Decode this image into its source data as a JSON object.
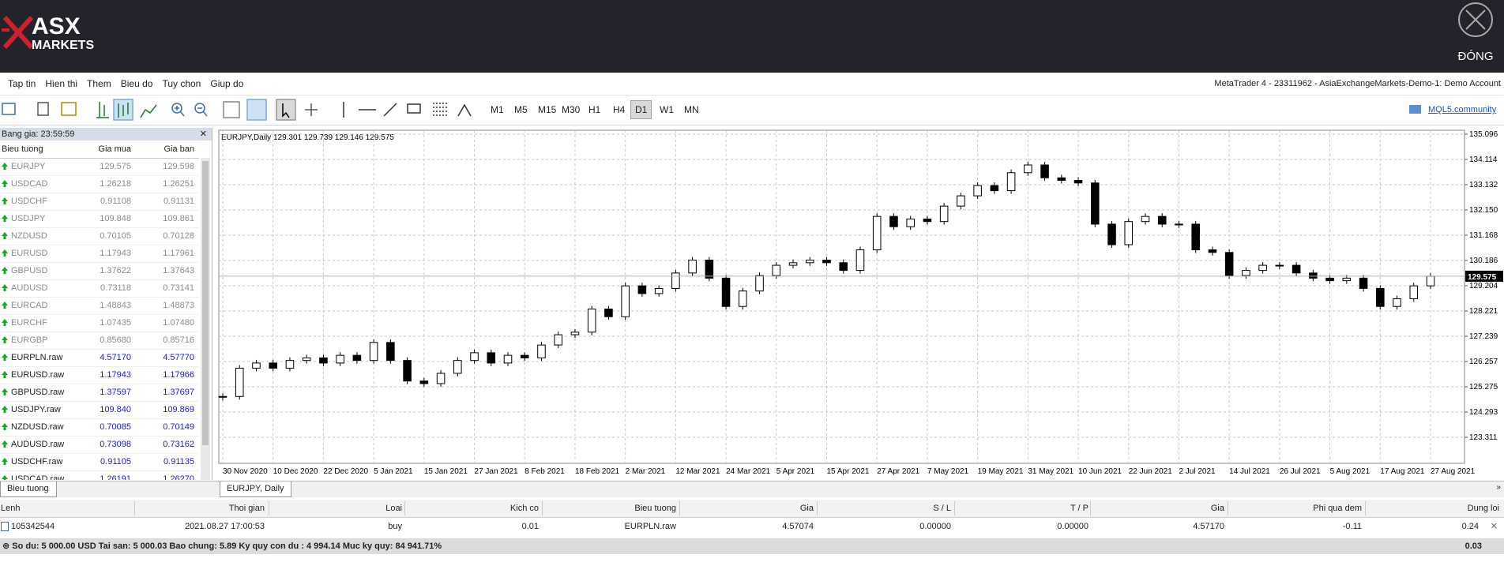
{
  "header": {
    "logo_top": "ASX",
    "logo_bottom": "MARKETS",
    "close_label": "ĐÓNG"
  },
  "menu": {
    "items": [
      "Tap tin",
      "Hien thi",
      "Them",
      "Bieu do",
      "Tuy chon",
      "Giup do"
    ],
    "account": "MetaTrader 4 - 23311962 - AsiaExchangeMarkets-Demo-1: Demo Account"
  },
  "toolbar": {
    "timeframes": [
      "M1",
      "M5",
      "M15",
      "M30",
      "H1",
      "H4",
      "D1",
      "W1",
      "MN"
    ],
    "active": "D1",
    "community": "MQL5.community"
  },
  "market_watch": {
    "title": "Bang gia: 23:59:59",
    "columns": [
      "Bieu tuong",
      "Gia mua",
      "Gia ban"
    ],
    "rows": [
      {
        "symbol": "EURJPY",
        "bid": "129.575",
        "ask": "129.598",
        "color": "#8c8c8c",
        "symbol_color": "#8c8c8c"
      },
      {
        "symbol": "USDCAD",
        "bid": "1.26218",
        "ask": "1.26251",
        "color": "#8c8c8c",
        "symbol_color": "#8c8c8c"
      },
      {
        "symbol": "USDCHF",
        "bid": "0.91108",
        "ask": "0.91131",
        "color": "#8c8c8c",
        "symbol_color": "#8c8c8c"
      },
      {
        "symbol": "USDJPY",
        "bid": "109.848",
        "ask": "109.861",
        "color": "#8c8c8c",
        "symbol_color": "#8c8c8c"
      },
      {
        "symbol": "NZDUSD",
        "bid": "0.70105",
        "ask": "0.70128",
        "color": "#8c8c8c",
        "symbol_color": "#8c8c8c"
      },
      {
        "symbol": "EURUSD",
        "bid": "1.17943",
        "ask": "1.17961",
        "color": "#8c8c8c",
        "symbol_color": "#8c8c8c"
      },
      {
        "symbol": "GBPUSD",
        "bid": "1.37622",
        "ask": "1.37643",
        "color": "#8c8c8c",
        "symbol_color": "#8c8c8c"
      },
      {
        "symbol": "AUDUSD",
        "bid": "0.73118",
        "ask": "0.73141",
        "color": "#8c8c8c",
        "symbol_color": "#8c8c8c"
      },
      {
        "symbol": "EURCAD",
        "bid": "1.48843",
        "ask": "1.48873",
        "color": "#8c8c8c",
        "symbol_color": "#8c8c8c"
      },
      {
        "symbol": "EURCHF",
        "bid": "1.07435",
        "ask": "1.07480",
        "color": "#8c8c8c",
        "symbol_color": "#8c8c8c"
      },
      {
        "symbol": "EURGBP",
        "bid": "0.85680",
        "ask": "0.85716",
        "color": "#8c8c8c",
        "symbol_color": "#8c8c8c"
      },
      {
        "symbol": "EURPLN.raw",
        "bid": "4.57170",
        "ask": "4.57770",
        "color": "#1a1ad6",
        "symbol_color": "#222222"
      },
      {
        "symbol": "EURUSD.raw",
        "bid": "1.17943",
        "ask": "1.17966",
        "color": "#1a1ad6",
        "symbol_color": "#222222"
      },
      {
        "symbol": "GBPUSD.raw",
        "bid": "1.37597",
        "ask": "1.37697",
        "color": "#1a1ad6",
        "symbol_color": "#222222"
      },
      {
        "symbol": "USDJPY.raw",
        "bid": "109.840",
        "ask": "109.869",
        "color": "#1a1ad6",
        "symbol_color": "#222222"
      },
      {
        "symbol": "NZDUSD.raw",
        "bid": "0.70085",
        "ask": "0.70149",
        "color": "#1a1ad6",
        "symbol_color": "#222222"
      },
      {
        "symbol": "AUDUSD.raw",
        "bid": "0.73098",
        "ask": "0.73162",
        "color": "#1a1ad6",
        "symbol_color": "#222222"
      },
      {
        "symbol": "USDCHF.raw",
        "bid": "0.91105",
        "ask": "0.91135",
        "color": "#1a1ad6",
        "symbol_color": "#222222"
      },
      {
        "symbol": "USDCAD.raw",
        "bid": "1.26191",
        "ask": "1.26270",
        "color": "#1a1ad6",
        "symbol_color": "#222222"
      }
    ]
  },
  "chart_data": {
    "type": "candlestick",
    "title": "EURJPY,Daily  129.301 129.739 129.146 129.575",
    "categories": [
      "30 Nov 2020",
      null,
      null,
      "10 Dec 2020",
      null,
      null,
      "22 Dec 2020",
      null,
      null,
      "5 Jan 2021",
      null,
      null,
      "15 Jan 2021",
      null,
      null,
      "27 Jan 2021",
      null,
      null,
      "8 Feb 2021",
      null,
      null,
      "18 Feb 2021",
      null,
      null,
      "2 Mar 2021",
      null,
      null,
      "12 Mar 2021",
      null,
      null,
      "24 Mar 2021",
      null,
      null,
      "5 Apr 2021",
      null,
      null,
      "15 Apr 2021",
      null,
      null,
      "27 Apr 2021",
      null,
      null,
      "7 May 2021",
      null,
      null,
      "19 May 2021",
      null,
      null,
      "31 May 2021",
      null,
      null,
      "10 Jun 2021",
      null,
      null,
      "22 Jun 2021",
      null,
      null,
      "2 Jul 2021",
      null,
      null,
      "14 Jul 2021",
      null,
      null,
      "26 Jul 2021",
      null,
      null,
      "5 Aug 2021",
      null,
      null,
      "17 Aug 2021",
      null,
      null,
      "27 Aug 2021"
    ],
    "close": [
      124.9,
      126.0,
      126.2,
      126.0,
      126.3,
      126.4,
      126.2,
      126.5,
      126.3,
      127.0,
      126.3,
      125.5,
      125.4,
      125.8,
      126.3,
      126.6,
      126.2,
      126.5,
      126.4,
      126.9,
      127.3,
      127.4,
      128.3,
      128.0,
      129.2,
      128.9,
      129.1,
      129.7,
      130.2,
      129.5,
      128.4,
      129.0,
      129.6,
      130.0,
      130.1,
      130.2,
      130.1,
      129.8,
      130.6,
      131.9,
      131.5,
      131.8,
      131.7,
      132.3,
      132.7,
      133.1,
      132.9,
      133.6,
      133.9,
      133.4,
      133.3,
      133.2,
      131.6,
      130.8,
      131.7,
      131.9,
      131.6,
      131.6,
      130.6,
      130.5,
      129.6,
      129.8,
      130.0,
      130.0,
      129.7,
      129.5,
      129.4,
      129.5,
      129.1,
      128.4,
      128.7,
      129.2,
      129.575
    ],
    "ylim": [
      122.3,
      135.25
    ],
    "yticks": [
      135.096,
      134.114,
      133.132,
      {
        "value": 132.15,
        "label": "132.150"
      },
      131.168,
      130.186,
      129.204,
      128.221,
      127.239,
      126.257,
      125.275,
      124.293,
      123.311
    ],
    "grid": true,
    "color": "#000000"
  },
  "tabs": {
    "left": "Bieu tuong",
    "chart": "EURJPY, Daily"
  },
  "orders": {
    "columns": [
      "Lenh",
      "Thoi gian",
      "Loai",
      "Kich co",
      "Bieu tuong",
      "Gia",
      "S / L",
      "T / P",
      "Gia",
      "Phi qua dem",
      "Dung loi"
    ],
    "rows": [
      [
        "105342544",
        "2021.08.27 17:00:53",
        "buy",
        "0.01",
        "EURPLN.raw",
        "4.57074",
        "0.00000",
        "0.00000",
        "4.57170",
        "-0.11",
        "0.24"
      ]
    ]
  },
  "balance": {
    "summary": "So du: 5 000.00 USD  Tai san: 5 000.03  Bao chung: 5.89  Ky quy con du : 4 994.14  Muc ky quy: 84 941.71%",
    "profit": "0.03"
  }
}
